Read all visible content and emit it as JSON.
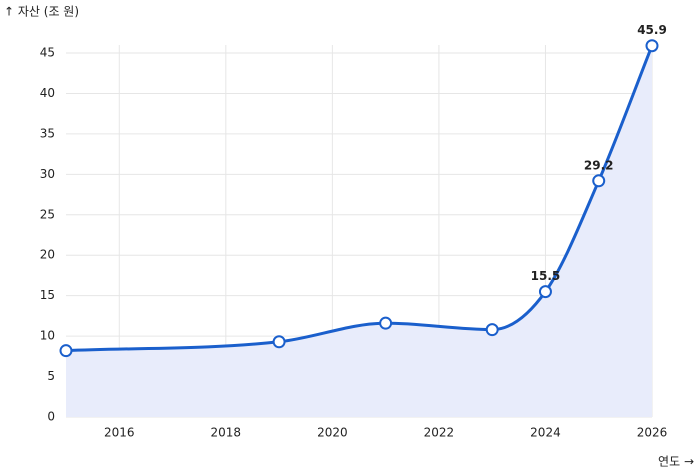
{
  "chart_data": {
    "type": "line",
    "y_label": "↑ 자산 (조 원)",
    "x_label": "연도 →",
    "x": [
      2015,
      2019,
      2021,
      2023,
      2024,
      2025,
      2026
    ],
    "series": [
      {
        "color": "#1a5fcc",
        "values": [
          8.2,
          9.3,
          11.6,
          10.8,
          15.5,
          29.2,
          45.9
        ],
        "value_labels": [
          null,
          null,
          null,
          null,
          "15.5",
          "29.2",
          "45.9"
        ]
      }
    ],
    "area_color": "#e8ecfb",
    "xlim": [
      2015,
      2026
    ],
    "xticks": [
      2016,
      2018,
      2020,
      2022,
      2024,
      2026
    ],
    "ylim": [
      0,
      45
    ],
    "yticks": [
      0,
      5,
      10,
      15,
      20,
      25,
      30,
      35,
      40,
      45
    ],
    "grid": true
  }
}
